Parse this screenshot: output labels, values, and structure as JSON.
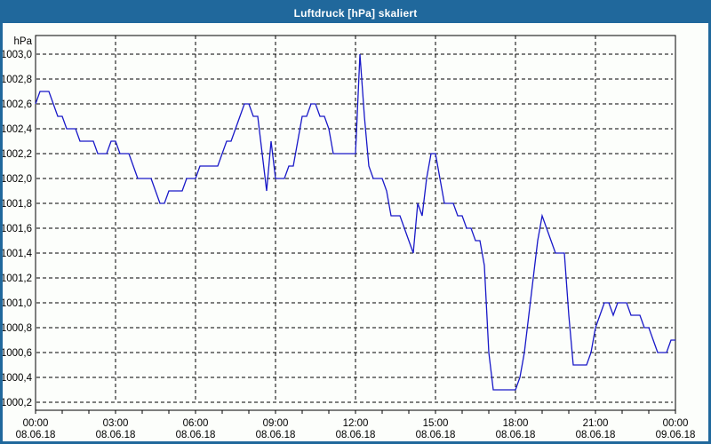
{
  "window": {
    "title": "Luftdruck [hPa] skaliert"
  },
  "colors": {
    "titlebar": "#20689c",
    "title_text": "#ffffff",
    "window_border": "#20689c",
    "background": "#fcfefb",
    "grid": "#000000",
    "axis": "#000000",
    "line": "#1818c8"
  },
  "chart_data": {
    "type": "line",
    "title": "Luftdruck [hPa] skaliert",
    "ylabel": "hPa",
    "xlabel": "",
    "ylim": [
      1000.2,
      1003.0
    ],
    "ytick_step": 0.2,
    "grid": "dashed",
    "legend_position": "none",
    "ytick_labels": [
      "1003,0",
      "1002,8",
      "1002,6",
      "1002,4",
      "1002,2",
      "1002,0",
      "1001,8",
      "1001,6",
      "1001,4",
      "1001,2",
      "1001,0",
      "1000,8",
      "1000,6",
      "1000,4",
      "1000,2"
    ],
    "xticks": [
      {
        "time": "00:00",
        "date": "08.06.18"
      },
      {
        "time": "03:00",
        "date": "08.06.18"
      },
      {
        "time": "06:00",
        "date": "08.06.18"
      },
      {
        "time": "09:00",
        "date": "08.06.18"
      },
      {
        "time": "12:00",
        "date": "08.06.18"
      },
      {
        "time": "15:00",
        "date": "08.06.18"
      },
      {
        "time": "18:00",
        "date": "08.06.18"
      },
      {
        "time": "21:00",
        "date": "08.06.18"
      },
      {
        "time": "00:00",
        "date": "09.06.18"
      }
    ],
    "x_start_minutes": 0,
    "x_interval_minutes": 10,
    "x_total_minutes": 1440,
    "minor_xtick_minutes": 60,
    "series": [
      {
        "name": "Luftdruck [hPa]",
        "color": "#1818c8",
        "values": [
          1002.6,
          1002.7,
          1002.7,
          1002.7,
          1002.6,
          1002.5,
          1002.5,
          1002.4,
          1002.4,
          1002.4,
          1002.3,
          1002.3,
          1002.3,
          1002.3,
          1002.2,
          1002.2,
          1002.2,
          1002.3,
          1002.3,
          1002.2,
          1002.2,
          1002.2,
          1002.1,
          1002.0,
          1002.0,
          1002.0,
          1002.0,
          1001.9,
          1001.8,
          1001.8,
          1001.9,
          1001.9,
          1001.9,
          1001.9,
          1002.0,
          1002.0,
          1002.0,
          1002.1,
          1002.1,
          1002.1,
          1002.1,
          1002.1,
          1002.2,
          1002.3,
          1002.3,
          1002.4,
          1002.5,
          1002.6,
          1002.6,
          1002.5,
          1002.5,
          1002.2,
          1001.9,
          1002.3,
          1002.0,
          1002.0,
          1002.0,
          1002.1,
          1002.1,
          1002.3,
          1002.5,
          1002.5,
          1002.6,
          1002.6,
          1002.5,
          1002.5,
          1002.4,
          1002.2,
          1002.2,
          1002.2,
          1002.2,
          1002.2,
          1002.2,
          1003.0,
          1002.5,
          1002.1,
          1002.0,
          1002.0,
          1002.0,
          1001.9,
          1001.7,
          1001.7,
          1001.7,
          1001.6,
          1001.5,
          1001.4,
          1001.8,
          1001.7,
          1002.0,
          1002.2,
          1002.2,
          1002.0,
          1001.8,
          1001.8,
          1001.8,
          1001.7,
          1001.7,
          1001.6,
          1001.6,
          1001.5,
          1001.5,
          1001.3,
          1000.6,
          1000.3,
          1000.3,
          1000.3,
          1000.3,
          1000.3,
          1000.3,
          1000.4,
          1000.6,
          1000.9,
          1001.2,
          1001.5,
          1001.7,
          1001.6,
          1001.5,
          1001.4,
          1001.4,
          1001.4,
          1000.9,
          1000.5,
          1000.5,
          1000.5,
          1000.5,
          1000.6,
          1000.8,
          1000.9,
          1001.0,
          1001.0,
          1000.9,
          1001.0,
          1001.0,
          1001.0,
          1000.9,
          1000.9,
          1000.9,
          1000.8,
          1000.8,
          1000.7,
          1000.6,
          1000.6,
          1000.6,
          1000.7,
          1000.7
        ]
      }
    ]
  }
}
